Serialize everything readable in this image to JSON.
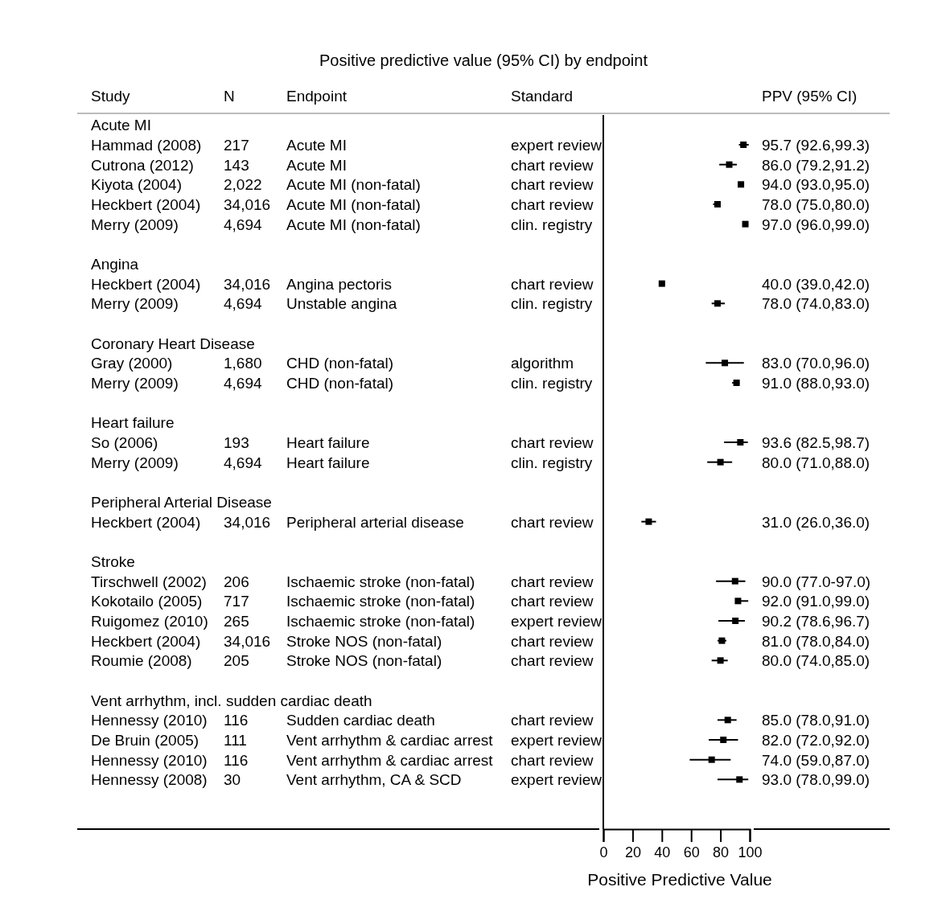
{
  "chart_data": [
    {
      "type": "other",
      "title": "Positive predictive value (95% CI) by endpoint"
    },
    {
      "type": "other",
      "title": "Study",
      "categories": [
        "Acute MI",
        "Hammad (2008)",
        "Cutrona (2012)",
        "Kiyota (2004)",
        "Heckbert (2004)",
        "Merry (2009)",
        null,
        "Angina",
        "Heckbert (2004)",
        "Merry (2009)",
        null,
        "Coronary Heart Disease",
        "Gray (2000)",
        "Merry (2009)",
        null,
        "Heart failure",
        "So (2006)",
        "Merry (2009)",
        null,
        "Peripheral Arterial Disease",
        "Heckbert (2004)",
        null,
        "Stroke",
        "Tirschwell (2002)",
        "Kokotailo (2005)",
        "Ruigomez (2010)",
        "Heckbert (2004)",
        "Roumie (2008)",
        null,
        "Vent arrhythm, incl. sudden cardiac death",
        "Hennessy (2010)",
        "De Bruin (2005)",
        "Hennessy (2010)",
        "Hennessy (2008)"
      ]
    },
    {
      "type": "other",
      "title": "N",
      "categories": [
        null,
        "217",
        "143",
        "2,022",
        "34,016",
        "4,694",
        null,
        null,
        "34,016",
        "4,694",
        null,
        null,
        "1,680",
        "4,694",
        null,
        null,
        "193",
        "4,694",
        null,
        null,
        "34,016",
        null,
        null,
        "206",
        "717",
        "265",
        "34,016",
        "205",
        null,
        null,
        "116",
        "111",
        "116",
        "30"
      ]
    },
    {
      "type": "other",
      "title": "Endpoint",
      "categories": [
        null,
        "Acute MI",
        "Acute MI",
        "Acute MI (non-fatal)",
        "Acute MI (non-fatal)",
        "Acute MI (non-fatal)",
        null,
        null,
        "Angina pectoris",
        "Unstable angina",
        null,
        null,
        "CHD (non-fatal)",
        "CHD (non-fatal)",
        null,
        null,
        "Heart failure",
        "Heart failure",
        null,
        null,
        "Peripheral arterial disease",
        null,
        null,
        "Ischaemic stroke (non-fatal)",
        "Ischaemic stroke (non-fatal)",
        "Ischaemic stroke (non-fatal)",
        "Stroke NOS (non-fatal)",
        "Stroke NOS (non-fatal)",
        null,
        null,
        "Sudden cardiac death",
        "Vent arrhythm & cardiac arrest",
        "Vent arrhythm & cardiac arrest",
        "Vent arrhythm, CA & SCD"
      ]
    },
    {
      "type": "other",
      "title": "Standard",
      "categories": [
        null,
        "expert review",
        "chart review",
        "chart review",
        "chart review",
        "clin. registry",
        null,
        null,
        "chart review",
        "clin. registry",
        null,
        null,
        "algorithm",
        "clin. registry",
        null,
        null,
        "chart review",
        "clin. registry",
        null,
        null,
        "chart review",
        null,
        null,
        "chart review",
        "chart review",
        "expert review",
        "chart review",
        "chart review",
        null,
        null,
        "chart review",
        "expert review",
        "chart review",
        "expert review"
      ]
    },
    {
      "type": "scatter",
      "xlabel": "Positive Predictive Value",
      "orientation": "horizontal",
      "marker": "square",
      "color": "#000000",
      "xlim": [
        0,
        100
      ],
      "xticks": [
        0,
        20,
        40,
        60,
        80,
        100
      ],
      "grid": false,
      "annotations": [
        "PPV (95% CI)"
      ],
      "categories": [
        null,
        null,
        null,
        null,
        null,
        null,
        null,
        null,
        null,
        null,
        null,
        null,
        null,
        null,
        null,
        null,
        null,
        null,
        null,
        null,
        null,
        null,
        null,
        null,
        null,
        null,
        null,
        null,
        null,
        null,
        null,
        null,
        null,
        null,
        null,
        null
      ],
      "values": [
        null,
        95.7,
        86.0,
        94.0,
        78.0,
        97.0,
        null,
        null,
        40.0,
        78.0,
        null,
        null,
        83.0,
        91.0,
        null,
        null,
        93.6,
        80.0,
        null,
        null,
        31.0,
        null,
        null,
        90.0,
        92.0,
        90.2,
        81.0,
        80.0,
        null,
        null,
        85.0,
        82.0,
        74.0,
        93.0,
        null,
        null
      ],
      "errors": [
        null,
        [
          92.6,
          99.3
        ],
        [
          79.2,
          91.2
        ],
        [
          93.0,
          95.0
        ],
        [
          75.0,
          80.0
        ],
        [
          96.0,
          99.0
        ],
        null,
        null,
        [
          39.0,
          42.0
        ],
        [
          74.0,
          83.0
        ],
        null,
        null,
        [
          70.0,
          96.0
        ],
        [
          88.0,
          93.0
        ],
        null,
        null,
        [
          82.5,
          98.7
        ],
        [
          71.0,
          88.0
        ],
        null,
        null,
        [
          26.0,
          36.0
        ],
        null,
        null,
        [
          77.0,
          97.0
        ],
        [
          91.0,
          99.0
        ],
        [
          78.6,
          96.7
        ],
        [
          78.0,
          84.0
        ],
        [
          74.0,
          85.0
        ],
        null,
        null,
        [
          78.0,
          91.0
        ],
        [
          72.0,
          92.0
        ],
        [
          59.0,
          87.0
        ],
        [
          78.0,
          99.0
        ],
        null,
        null
      ],
      "value_labels": [
        null,
        "95.7 (92.6,99.3)",
        "86.0 (79.2,91.2)",
        "94.0 (93.0,95.0)",
        "78.0 (75.0,80.0)",
        "97.0 (96.0,99.0)",
        null,
        null,
        "40.0 (39.0,42.0)",
        "78.0 (74.0,83.0)",
        null,
        null,
        "83.0 (70.0,96.0)",
        "91.0 (88.0,93.0)",
        null,
        null,
        "93.6 (82.5,98.7)",
        "80.0 (71.0,88.0)",
        null,
        null,
        "31.0 (26.0,36.0)",
        null,
        null,
        "90.0 (77.0-97.0)",
        "92.0 (91.0,99.0)",
        "90.2 (78.6,96.7)",
        "81.0 (78.0,84.0)",
        "80.0 (74.0,85.0)",
        null,
        null,
        "85.0 (78.0,91.0)",
        "82.0 (72.0,92.0)",
        "74.0 (59.0,87.0)",
        "93.0 (78.0,99.0)",
        null,
        null
      ]
    }
  ]
}
